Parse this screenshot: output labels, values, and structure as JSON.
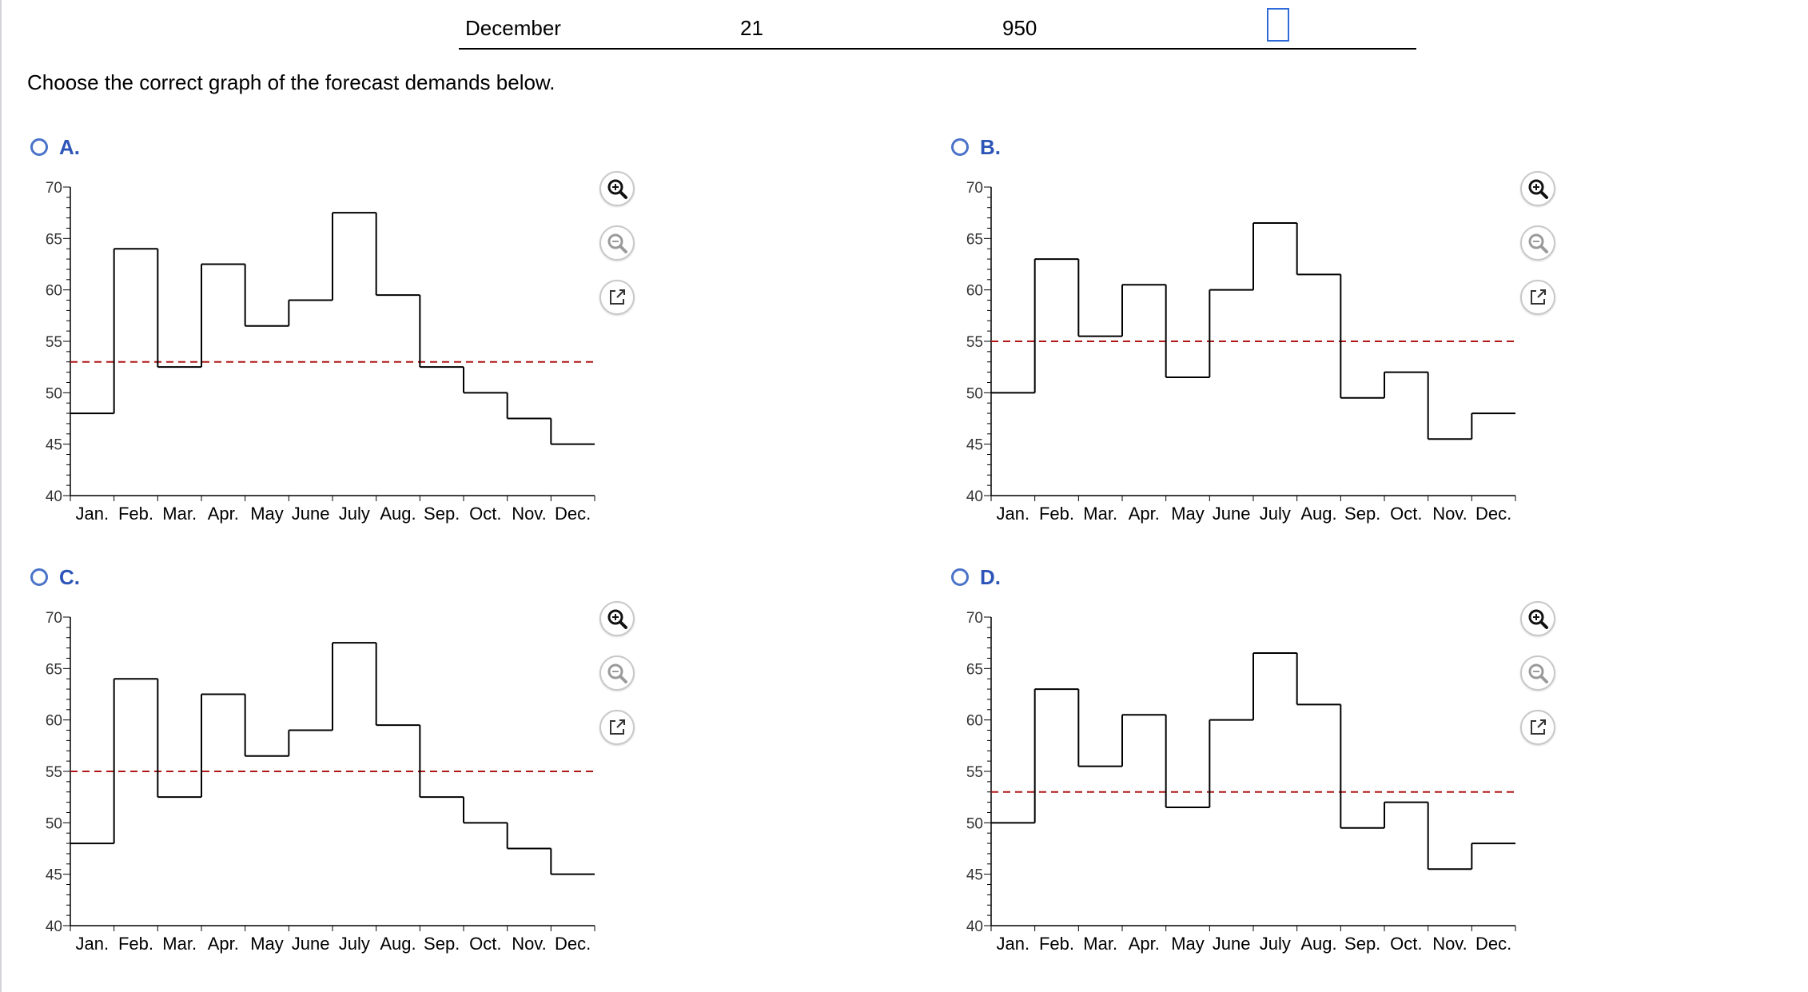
{
  "table_row": {
    "month": "December",
    "period": "21",
    "demand": "950",
    "answer": ""
  },
  "prompt": "Choose the correct graph of the forecast demands below.",
  "tools": {
    "zoom_in": "zoom-in-icon",
    "zoom_out": "zoom-out-icon",
    "popout": "external-link-icon"
  },
  "colors": {
    "accent": "#2d55b8",
    "radio": "#4a73c9",
    "mean_line": "#b01818",
    "step_line": "#000000"
  },
  "options": [
    {
      "letter": "A."
    },
    {
      "letter": "B."
    },
    {
      "letter": "C."
    },
    {
      "letter": "D."
    }
  ],
  "chart_data": [
    {
      "type": "line",
      "style": "step",
      "categories": [
        "Jan.",
        "Feb.",
        "Mar.",
        "Apr.",
        "May",
        "June",
        "July",
        "Aug.",
        "Sep.",
        "Oct.",
        "Nov.",
        "Dec."
      ],
      "values": [
        48,
        64,
        52.5,
        62.5,
        56.5,
        59,
        67.5,
        59.5,
        52.5,
        50,
        47.5,
        45
      ],
      "reference_line": 53,
      "ylim": [
        40,
        70
      ],
      "yticks": [
        40,
        45,
        50,
        55,
        60,
        65,
        70
      ],
      "title": "",
      "xlabel": "",
      "ylabel": ""
    },
    {
      "type": "line",
      "style": "step",
      "categories": [
        "Jan.",
        "Feb.",
        "Mar.",
        "Apr.",
        "May",
        "June",
        "July",
        "Aug.",
        "Sep.",
        "Oct.",
        "Nov.",
        "Dec."
      ],
      "values": [
        50,
        63,
        55.5,
        60.5,
        51.5,
        60,
        66.5,
        61.5,
        49.5,
        52,
        45.5,
        48
      ],
      "reference_line": 55,
      "ylim": [
        40,
        70
      ],
      "yticks": [
        40,
        45,
        50,
        55,
        60,
        65,
        70
      ],
      "title": "",
      "xlabel": "",
      "ylabel": ""
    },
    {
      "type": "line",
      "style": "step",
      "categories": [
        "Jan.",
        "Feb.",
        "Mar.",
        "Apr.",
        "May",
        "June",
        "July",
        "Aug.",
        "Sep.",
        "Oct.",
        "Nov.",
        "Dec."
      ],
      "values": [
        48,
        64,
        52.5,
        62.5,
        56.5,
        59,
        67.5,
        59.5,
        52.5,
        50,
        47.5,
        45
      ],
      "reference_line": 55,
      "ylim": [
        40,
        70
      ],
      "yticks": [
        40,
        45,
        50,
        55,
        60,
        65,
        70
      ],
      "title": "",
      "xlabel": "",
      "ylabel": ""
    },
    {
      "type": "line",
      "style": "step",
      "categories": [
        "Jan.",
        "Feb.",
        "Mar.",
        "Apr.",
        "May",
        "June",
        "July",
        "Aug.",
        "Sep.",
        "Oct.",
        "Nov.",
        "Dec."
      ],
      "values": [
        50,
        63,
        55.5,
        60.5,
        51.5,
        60,
        66.5,
        61.5,
        49.5,
        52,
        45.5,
        48
      ],
      "reference_line": 53,
      "ylim": [
        40,
        70
      ],
      "yticks": [
        40,
        45,
        50,
        55,
        60,
        65,
        70
      ],
      "title": "",
      "xlabel": "",
      "ylabel": ""
    }
  ]
}
